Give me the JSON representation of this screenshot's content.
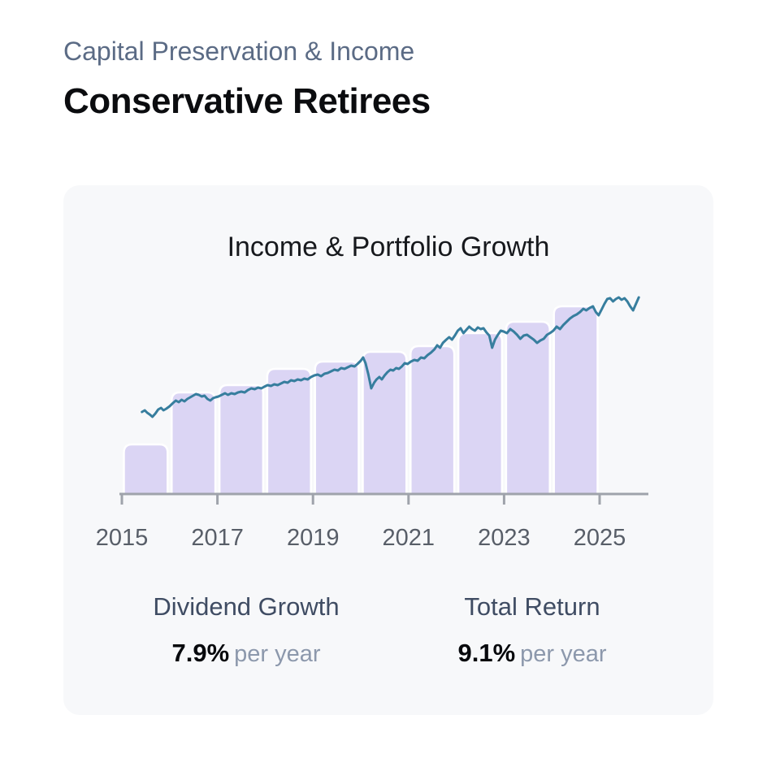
{
  "page": {
    "eyebrow": "Capital Preservation & Income",
    "title": "Conservative Retirees"
  },
  "card": {
    "chart_title": "Income & Portfolio Growth"
  },
  "stats": [
    {
      "label": "Dividend Growth",
      "value": "7.9%",
      "suffix": "per year"
    },
    {
      "label": "Total Return",
      "value": "9.1%",
      "suffix": "per year"
    }
  ],
  "colors": {
    "card_bg": "#f7f8fa",
    "eyebrow": "#5b6b85",
    "title": "#0b0c0f",
    "chart_title": "#17191d",
    "bar_fill": "#dbd5f4",
    "bar_border": "#ffffff",
    "accent_line": "#377e9e",
    "axis": "#9fa3ab",
    "tick_label": "#585e68",
    "stat_label": "#3f4c63",
    "stat_value": "#07090d",
    "stat_suffix": "#8c98ac"
  },
  "chart_data": {
    "type": "bar+line",
    "title": "Income & Portfolio Growth",
    "grid": false,
    "legend": false,
    "x_axis": {
      "ticks": [
        2015,
        2017,
        2019,
        2021,
        2023,
        2025
      ],
      "tick_labels": [
        "2015",
        "2017",
        "2019",
        "2021",
        "2023",
        "2025"
      ],
      "range": [
        2014.95,
        2026.1
      ]
    },
    "y_axis": {
      "visible": false,
      "range": [
        0,
        260
      ],
      "units": "relative index"
    },
    "bar_series": {
      "name": "annual-dividend-income",
      "years": [
        2015,
        2016,
        2017,
        2018,
        2019,
        2020,
        2021,
        2022,
        2023,
        2024
      ],
      "values": [
        61,
        125,
        134,
        154,
        163,
        175,
        182,
        198,
        212,
        231
      ]
    },
    "line_series": {
      "name": "portfolio-total-return",
      "points": [
        [
          2015.42,
          101
        ],
        [
          2015.48,
          103
        ],
        [
          2015.53,
          100
        ],
        [
          2015.58,
          98
        ],
        [
          2015.64,
          95
        ],
        [
          2015.7,
          99
        ],
        [
          2015.76,
          104
        ],
        [
          2015.82,
          106
        ],
        [
          2015.87,
          103
        ],
        [
          2015.93,
          105
        ],
        [
          2016.0,
          108
        ],
        [
          2016.07,
          112
        ],
        [
          2016.13,
          115
        ],
        [
          2016.19,
          113
        ],
        [
          2016.25,
          116
        ],
        [
          2016.31,
          114
        ],
        [
          2016.37,
          117
        ],
        [
          2016.43,
          119
        ],
        [
          2016.49,
          121
        ],
        [
          2016.55,
          123
        ],
        [
          2016.61,
          122
        ],
        [
          2016.67,
          120
        ],
        [
          2016.73,
          121
        ],
        [
          2016.79,
          117
        ],
        [
          2016.85,
          115
        ],
        [
          2016.91,
          118
        ],
        [
          2016.96,
          119
        ],
        [
          2017.02,
          120
        ],
        [
          2017.09,
          122
        ],
        [
          2017.16,
          124
        ],
        [
          2017.22,
          122
        ],
        [
          2017.29,
          124
        ],
        [
          2017.36,
          123
        ],
        [
          2017.43,
          125
        ],
        [
          2017.5,
          126
        ],
        [
          2017.57,
          125
        ],
        [
          2017.64,
          128
        ],
        [
          2017.71,
          130
        ],
        [
          2017.78,
          129
        ],
        [
          2017.85,
          131
        ],
        [
          2017.92,
          130
        ],
        [
          2017.98,
          132
        ],
        [
          2018.05,
          134
        ],
        [
          2018.12,
          133
        ],
        [
          2018.19,
          135
        ],
        [
          2018.26,
          134
        ],
        [
          2018.33,
          136
        ],
        [
          2018.4,
          138
        ],
        [
          2018.47,
          137
        ],
        [
          2018.54,
          140
        ],
        [
          2018.61,
          139
        ],
        [
          2018.68,
          141
        ],
        [
          2018.75,
          140
        ],
        [
          2018.82,
          142
        ],
        [
          2018.89,
          141
        ],
        [
          2018.96,
          144
        ],
        [
          2019.03,
          146
        ],
        [
          2019.1,
          147
        ],
        [
          2019.17,
          145
        ],
        [
          2019.24,
          148
        ],
        [
          2019.31,
          149
        ],
        [
          2019.38,
          151
        ],
        [
          2019.45,
          153
        ],
        [
          2019.52,
          152
        ],
        [
          2019.59,
          155
        ],
        [
          2019.66,
          154
        ],
        [
          2019.73,
          156
        ],
        [
          2019.8,
          158
        ],
        [
          2019.87,
          157
        ],
        [
          2019.93,
          160
        ],
        [
          2020.0,
          164
        ],
        [
          2020.05,
          168
        ],
        [
          2020.1,
          161
        ],
        [
          2020.16,
          147
        ],
        [
          2020.22,
          130
        ],
        [
          2020.28,
          137
        ],
        [
          2020.33,
          141
        ],
        [
          2020.39,
          144
        ],
        [
          2020.44,
          141
        ],
        [
          2020.5,
          146
        ],
        [
          2020.56,
          150
        ],
        [
          2020.62,
          153
        ],
        [
          2020.68,
          152
        ],
        [
          2020.74,
          155
        ],
        [
          2020.8,
          154
        ],
        [
          2020.86,
          157
        ],
        [
          2020.92,
          161
        ],
        [
          2020.98,
          160
        ],
        [
          2021.05,
          163
        ],
        [
          2021.12,
          165
        ],
        [
          2021.19,
          164
        ],
        [
          2021.26,
          168
        ],
        [
          2021.33,
          167
        ],
        [
          2021.4,
          171
        ],
        [
          2021.47,
          174
        ],
        [
          2021.54,
          178
        ],
        [
          2021.6,
          183
        ],
        [
          2021.66,
          180
        ],
        [
          2021.72,
          186
        ],
        [
          2021.79,
          190
        ],
        [
          2021.85,
          193
        ],
        [
          2021.91,
          190
        ],
        [
          2021.97,
          195
        ],
        [
          2022.03,
          201
        ],
        [
          2022.09,
          204
        ],
        [
          2022.15,
          198
        ],
        [
          2022.21,
          202
        ],
        [
          2022.27,
          206
        ],
        [
          2022.33,
          203
        ],
        [
          2022.39,
          201
        ],
        [
          2022.45,
          205
        ],
        [
          2022.51,
          203
        ],
        [
          2022.57,
          204
        ],
        [
          2022.63,
          199
        ],
        [
          2022.69,
          195
        ],
        [
          2022.75,
          180
        ],
        [
          2022.81,
          190
        ],
        [
          2022.87,
          196
        ],
        [
          2022.93,
          201
        ],
        [
          2022.99,
          200
        ],
        [
          2023.06,
          198
        ],
        [
          2023.13,
          203
        ],
        [
          2023.2,
          200
        ],
        [
          2023.27,
          196
        ],
        [
          2023.34,
          191
        ],
        [
          2023.41,
          195
        ],
        [
          2023.48,
          196
        ],
        [
          2023.55,
          193
        ],
        [
          2023.62,
          190
        ],
        [
          2023.69,
          186
        ],
        [
          2023.76,
          189
        ],
        [
          2023.83,
          191
        ],
        [
          2023.9,
          196
        ],
        [
          2023.96,
          198
        ],
        [
          2024.03,
          201
        ],
        [
          2024.1,
          206
        ],
        [
          2024.17,
          203
        ],
        [
          2024.24,
          208
        ],
        [
          2024.31,
          212
        ],
        [
          2024.38,
          216
        ],
        [
          2024.45,
          219
        ],
        [
          2024.52,
          221
        ],
        [
          2024.59,
          224
        ],
        [
          2024.66,
          228
        ],
        [
          2024.72,
          226
        ],
        [
          2024.79,
          229
        ],
        [
          2024.86,
          231
        ],
        [
          2024.92,
          224
        ],
        [
          2024.98,
          220
        ],
        [
          2025.04,
          227
        ],
        [
          2025.1,
          234
        ],
        [
          2025.16,
          240
        ],
        [
          2025.22,
          241
        ],
        [
          2025.28,
          237
        ],
        [
          2025.34,
          240
        ],
        [
          2025.4,
          242
        ],
        [
          2025.46,
          239
        ],
        [
          2025.52,
          241
        ],
        [
          2025.58,
          237
        ],
        [
          2025.64,
          231
        ],
        [
          2025.7,
          226
        ],
        [
          2025.76,
          234
        ],
        [
          2025.82,
          242
        ]
      ]
    }
  }
}
